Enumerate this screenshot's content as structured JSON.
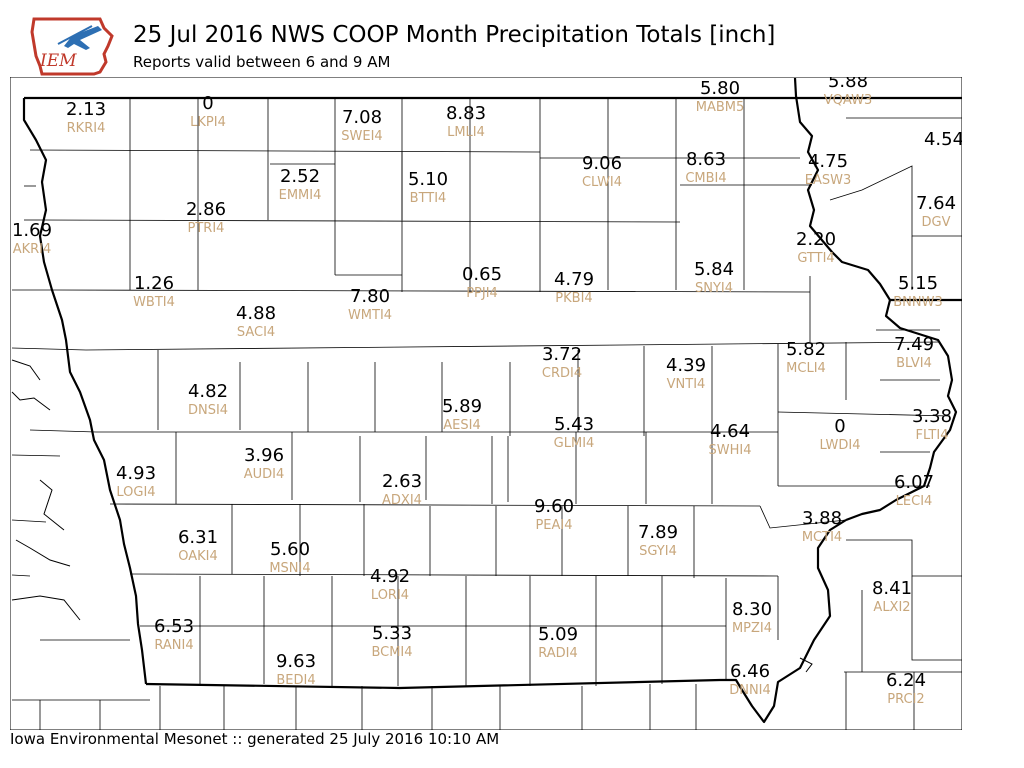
{
  "header": {
    "title": "25 Jul 2016 NWS COOP Month Precipitation Totals [inch]",
    "subtitle": "Reports valid between 6 and 9 AM",
    "logo_text": "IEM"
  },
  "footer": {
    "text": "Iowa Environmental Mesonet :: generated 25 July 2016 10:10 AM"
  },
  "colors": {
    "station_label": "#c8a77c",
    "value_text": "#000000",
    "logo_red": "#c0392b",
    "logo_blue": "#2d6fb3"
  },
  "stations": [
    {
      "id": "RKRI4",
      "value": "2.13"
    },
    {
      "id": "LKPI4",
      "value": "0"
    },
    {
      "id": "SWEI4",
      "value": "7.08"
    },
    {
      "id": "LMLI4",
      "value": "8.83"
    },
    {
      "id": "MABM5",
      "value": "5.80"
    },
    {
      "id": "VQAW3",
      "value": "5.88"
    },
    {
      "id": "",
      "value": "4.54"
    },
    {
      "id": "CLWI4",
      "value": "9.06"
    },
    {
      "id": "CMBI4",
      "value": "8.63"
    },
    {
      "id": "EASW3",
      "value": "4.75"
    },
    {
      "id": "EMMI4",
      "value": "2.52"
    },
    {
      "id": "BTTI4",
      "value": "5.10"
    },
    {
      "id": "DGV",
      "value": "7.64"
    },
    {
      "id": "PTRI4",
      "value": "2.86"
    },
    {
      "id": "AKRI4",
      "value": "1.69"
    },
    {
      "id": "GTTI4",
      "value": "2.20"
    },
    {
      "id": "WBTI4",
      "value": "1.26"
    },
    {
      "id": "PPJI4",
      "value": "0.65"
    },
    {
      "id": "PKBI4",
      "value": "4.79"
    },
    {
      "id": "SNYI4",
      "value": "5.84"
    },
    {
      "id": "BNNW3",
      "value": "5.15"
    },
    {
      "id": "SACI4",
      "value": "4.88"
    },
    {
      "id": "WMTI4",
      "value": "7.80"
    },
    {
      "id": "CRDI4",
      "value": "3.72"
    },
    {
      "id": "VNTI4",
      "value": "4.39"
    },
    {
      "id": "MCLI4",
      "value": "5.82"
    },
    {
      "id": "BLVI4",
      "value": "7.49"
    },
    {
      "id": "DNSI4",
      "value": "4.82"
    },
    {
      "id": "AESI4",
      "value": "5.89"
    },
    {
      "id": "GLMI4",
      "value": "5.43"
    },
    {
      "id": "SWHI4",
      "value": "4.64"
    },
    {
      "id": "LWDI4",
      "value": "0"
    },
    {
      "id": "FLTI4",
      "value": "3.38"
    },
    {
      "id": "LOGI4",
      "value": "4.93"
    },
    {
      "id": "AUDI4",
      "value": "3.96"
    },
    {
      "id": "ADXI4",
      "value": "2.63"
    },
    {
      "id": "PEAI4",
      "value": "9.60"
    },
    {
      "id": "LECI4",
      "value": "6.07"
    },
    {
      "id": "OAKI4",
      "value": "6.31"
    },
    {
      "id": "MSNI4",
      "value": "5.60"
    },
    {
      "id": "SGYI4",
      "value": "7.89"
    },
    {
      "id": "MCTI4",
      "value": "3.88"
    },
    {
      "id": "LORI4",
      "value": "4.92"
    },
    {
      "id": "ALXI2",
      "value": "8.41"
    },
    {
      "id": "MPZI4",
      "value": "8.30"
    },
    {
      "id": "RANI4",
      "value": "6.53"
    },
    {
      "id": "BCMI4",
      "value": "5.33"
    },
    {
      "id": "RADI4",
      "value": "5.09"
    },
    {
      "id": "BEDI4",
      "value": "9.63"
    },
    {
      "id": "DNNI4",
      "value": "6.46"
    },
    {
      "id": "PRCI2",
      "value": "6.24"
    }
  ]
}
